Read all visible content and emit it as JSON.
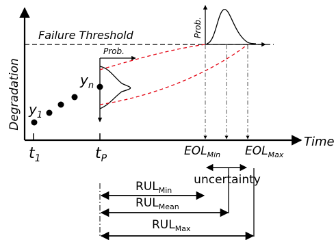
{
  "labels": {
    "failure_threshold": "Failure Threshold",
    "ylabel": "Degradation",
    "xlabel": "Time",
    "prob": "Prob.",
    "uncertainty": "uncertainty"
  },
  "points": {
    "y1": {
      "base": "y",
      "sub": "1"
    },
    "yn": {
      "base": "y",
      "sub": "n"
    }
  },
  "ticks": {
    "t1": {
      "base": "t",
      "sub": "1"
    },
    "tp": {
      "base": "t",
      "sub": "P"
    },
    "eol_min": {
      "base": "EOL",
      "sub": "Min"
    },
    "eol_max": {
      "base": "EOL",
      "sub": "Max"
    }
  },
  "rul": {
    "min": {
      "base": "RUL",
      "sub": "Min"
    },
    "mean": {
      "base": "RUL",
      "sub": "Mean"
    },
    "max": {
      "base": "RUL",
      "sub": "Max"
    }
  },
  "colors": {
    "line": "#000000",
    "bounds": "#e3000f"
  }
}
